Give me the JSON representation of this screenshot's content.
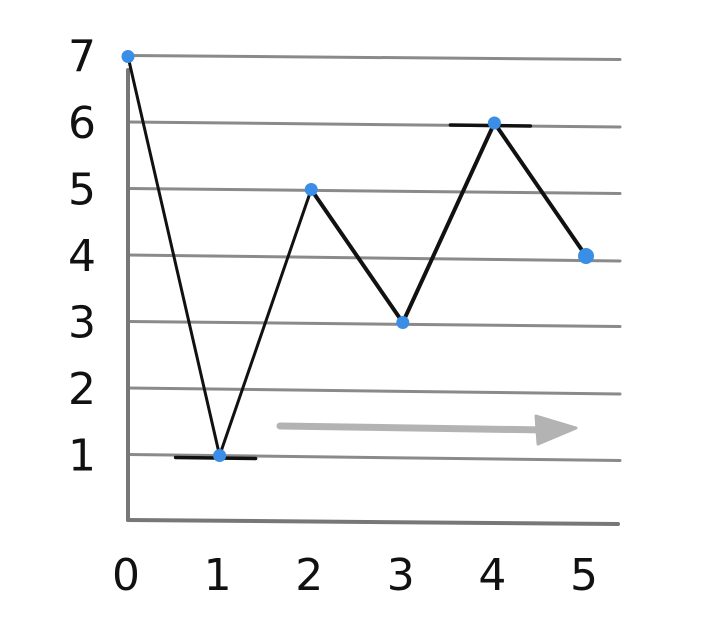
{
  "chart_data": {
    "type": "line",
    "x": [
      0,
      1,
      2,
      3,
      4,
      5
    ],
    "y": [
      7,
      1,
      5,
      3,
      6,
      4
    ],
    "x_ticks": [
      "0",
      "1",
      "2",
      "3",
      "4",
      "5"
    ],
    "y_ticks": [
      "1",
      "2",
      "3",
      "4",
      "5",
      "6",
      "7"
    ],
    "xlim": [
      0,
      5
    ],
    "ylim": [
      0,
      7
    ],
    "grid": true,
    "title": "",
    "xlabel": "",
    "ylabel": "",
    "extrema_markers": [
      {
        "x": 1,
        "y": 1,
        "kind": "minimum"
      },
      {
        "x": 4,
        "y": 6,
        "kind": "maximum"
      }
    ],
    "annotation_arrow": {
      "direction": "right"
    },
    "colors": {
      "line": "#111111",
      "point": "#3a8ee6",
      "grid": "#8a8a8a",
      "axis": "#777777",
      "arrow": "#b3b3b3"
    }
  }
}
